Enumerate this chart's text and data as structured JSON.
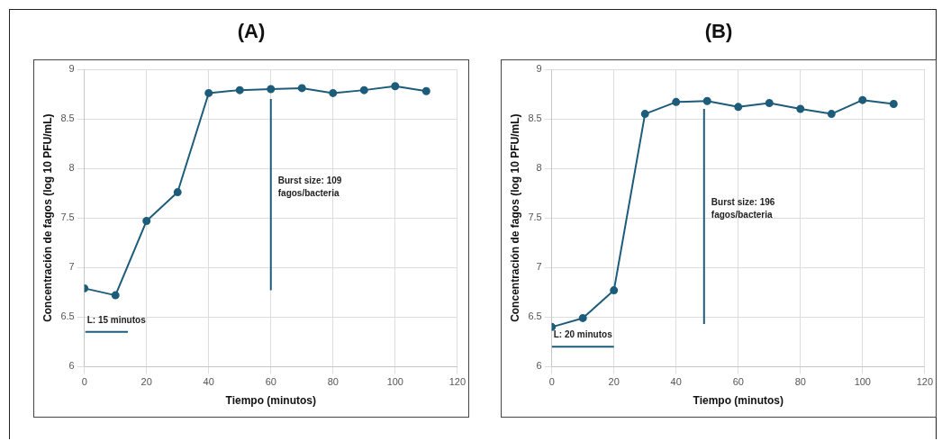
{
  "chart_data": [
    {
      "type": "line",
      "title": "(A)",
      "xlabel": "Tiempo (minutos)",
      "ylabel": "Concentración de fagos (log 10 PFU/mL)",
      "x": [
        0,
        10,
        20,
        30,
        40,
        50,
        60,
        70,
        80,
        90,
        100,
        110
      ],
      "series": [
        {
          "color": "#1d5c7a",
          "values": [
            6.79,
            6.72,
            7.47,
            7.76,
            8.76,
            8.79,
            8.8,
            8.81,
            8.76,
            8.79,
            8.83,
            8.78
          ]
        },
        {
          "type": "line",
          "marker": "none",
          "color": "#1d5c7a",
          "x": [
            60,
            60
          ],
          "values": [
            6.77,
            8.7
          ]
        },
        {
          "type": "line",
          "marker": "none",
          "color": "#1d5c7a",
          "x": [
            0.3,
            14
          ],
          "values": [
            6.35,
            6.35
          ]
        }
      ],
      "annotations": [
        "Burst size: 109 fagos/bacteria",
        "L: 15 minutos"
      ],
      "xlim": [
        0,
        120
      ],
      "xticks": [
        0,
        20,
        40,
        60,
        80,
        100,
        120
      ],
      "ylim": [
        6,
        9
      ],
      "yticks": [
        6,
        6.5,
        7,
        7.5,
        8,
        8.5,
        9
      ],
      "grid": true,
      "legend": false,
      "marker": "circle"
    },
    {
      "type": "line",
      "title": "(B)",
      "xlabel": "Tiempo (minutos)",
      "ylabel": "Concentración de fagos (log 10 PFU/mL)",
      "x": [
        0,
        10,
        20,
        30,
        40,
        50,
        60,
        70,
        80,
        90,
        100,
        110
      ],
      "series": [
        {
          "color": "#1d5c7a",
          "values": [
            6.4,
            6.49,
            6.77,
            8.55,
            8.67,
            8.68,
            8.62,
            8.66,
            8.6,
            8.55,
            8.69,
            8.65
          ]
        },
        {
          "type": "line",
          "marker": "none",
          "color": "#1d5c7a",
          "x": [
            49,
            49
          ],
          "values": [
            6.43,
            8.6
          ]
        },
        {
          "type": "line",
          "marker": "none",
          "color": "#1d5c7a",
          "x": [
            0,
            20
          ],
          "values": [
            6.2,
            6.2
          ]
        }
      ],
      "annotations": [
        "Burst size: 196 fagos/bacteria",
        "L: 20 minutos"
      ],
      "xlim": [
        0,
        120
      ],
      "xticks": [
        0,
        20,
        40,
        60,
        80,
        100,
        120
      ],
      "ylim": [
        6,
        9
      ],
      "yticks": [
        6,
        6.5,
        7,
        7.5,
        8,
        8.5,
        9
      ],
      "grid": true,
      "legend": false,
      "marker": "circle"
    }
  ]
}
